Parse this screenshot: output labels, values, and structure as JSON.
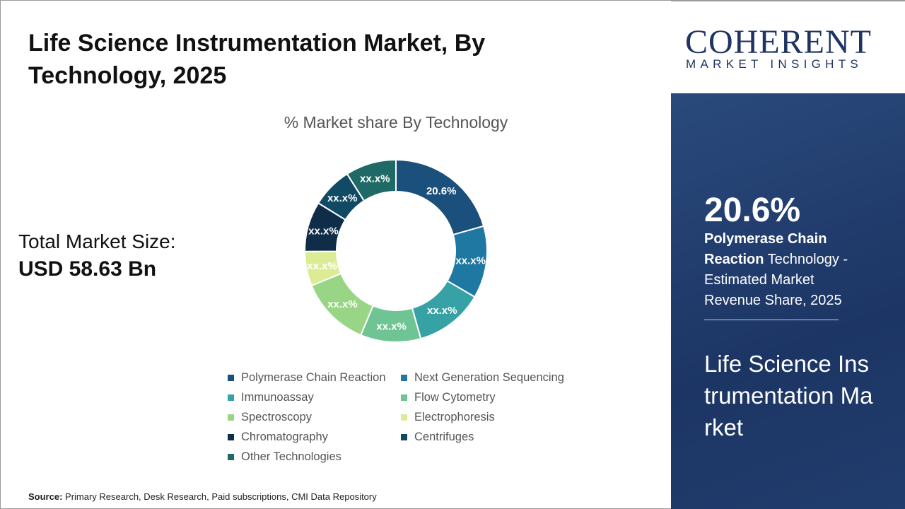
{
  "title": "Life Science Instrumentation Market, By Technology, 2025",
  "total_label": "Total Market Size:",
  "total_value": "USD 58.63 Bn",
  "source_label": "Source:",
  "source_text": "Primary Research, Desk Research, Paid subscriptions, CMI Data Repository",
  "logo": {
    "main": "COHERENT",
    "sub": "MARKET INSIGHTS"
  },
  "highlight": {
    "value": "20.6%",
    "bold": "Polymerase Chain Reaction",
    "rest": " Technology - Estimated Market Revenue Share, 2025",
    "market": "Life Science Instrumentation Market"
  },
  "chart_data": {
    "type": "pie",
    "donut": true,
    "title": "% Market share By Technology",
    "categories": [
      "Polymerase Chain Reaction",
      "Next Generation Sequencing",
      "Immunoassay",
      "Flow Cytometry",
      "Spectroscopy",
      "Electrophoresis",
      "Chromatography",
      "Centrifuges",
      "Other Technologies"
    ],
    "values": [
      20.6,
      12.8,
      12.2,
      10.7,
      12.5,
      6.1,
      8.9,
      7.2,
      9.0
    ],
    "labels": [
      "20.6%",
      "xx.x%",
      "xx.x%",
      "xx.x%",
      "xx.x%",
      "xx.x%",
      "xx.x%",
      "xx.x%",
      "xx.x%"
    ],
    "colors": [
      "#1b4f7c",
      "#1f78a1",
      "#37a2a6",
      "#6ec593",
      "#98d686",
      "#dcec95",
      "#0f2c49",
      "#104a64",
      "#1f6a66"
    ],
    "legend_position": "bottom"
  }
}
